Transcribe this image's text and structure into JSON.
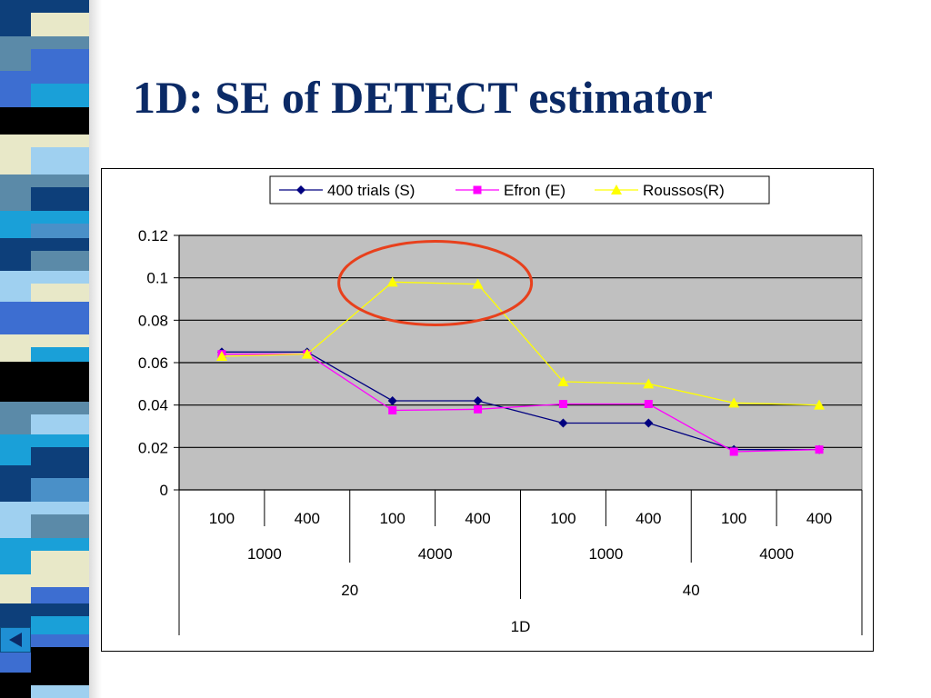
{
  "slide": {
    "title": "1D: SE of DETECT estimator"
  },
  "navigation": {
    "back_icon": "triangle-left-icon"
  },
  "colors": {
    "plot_background": "#c0c0c0",
    "title_color": "#0b2a66",
    "highlight_ellipse": "#e8401c"
  },
  "chart_data": {
    "type": "line",
    "title": "",
    "xlabel": "1D",
    "ylabel": "",
    "ylim": [
      0,
      0.12
    ],
    "yticks": [
      "0",
      "0.02",
      "0.04",
      "0.06",
      "0.08",
      "0.1",
      "0.12"
    ],
    "categories": [
      "100",
      "400",
      "100",
      "400",
      "100",
      "400",
      "100",
      "400"
    ],
    "group_level_2": [
      {
        "label": "1000",
        "span": 2
      },
      {
        "label": "4000",
        "span": 2
      },
      {
        "label": "1000",
        "span": 2
      },
      {
        "label": "4000",
        "span": 2
      }
    ],
    "group_level_3": [
      {
        "label": "20",
        "span": 4
      },
      {
        "label": "40",
        "span": 4
      }
    ],
    "group_level_4": [
      {
        "label": "1D",
        "span": 8
      }
    ],
    "grid": true,
    "legend_position": "top",
    "series": [
      {
        "name": "400 trials (S)",
        "color": "#000080",
        "marker": "diamond",
        "values": [
          0.065,
          0.065,
          0.042,
          0.042,
          0.0315,
          0.0315,
          0.019,
          0.019
        ]
      },
      {
        "name": "Efron (E)",
        "color": "#ff00ff",
        "marker": "square",
        "values": [
          0.064,
          0.064,
          0.0375,
          0.038,
          0.0405,
          0.0405,
          0.018,
          0.019
        ]
      },
      {
        "name": "Roussos(R)",
        "color": "#ffff00",
        "marker": "triangle",
        "values": [
          0.063,
          0.064,
          0.098,
          0.097,
          0.051,
          0.05,
          0.041,
          0.04
        ]
      }
    ],
    "annotations": [
      {
        "type": "ellipse",
        "around_categories": [
          2,
          3
        ],
        "series": "Roussos(R)"
      }
    ]
  }
}
